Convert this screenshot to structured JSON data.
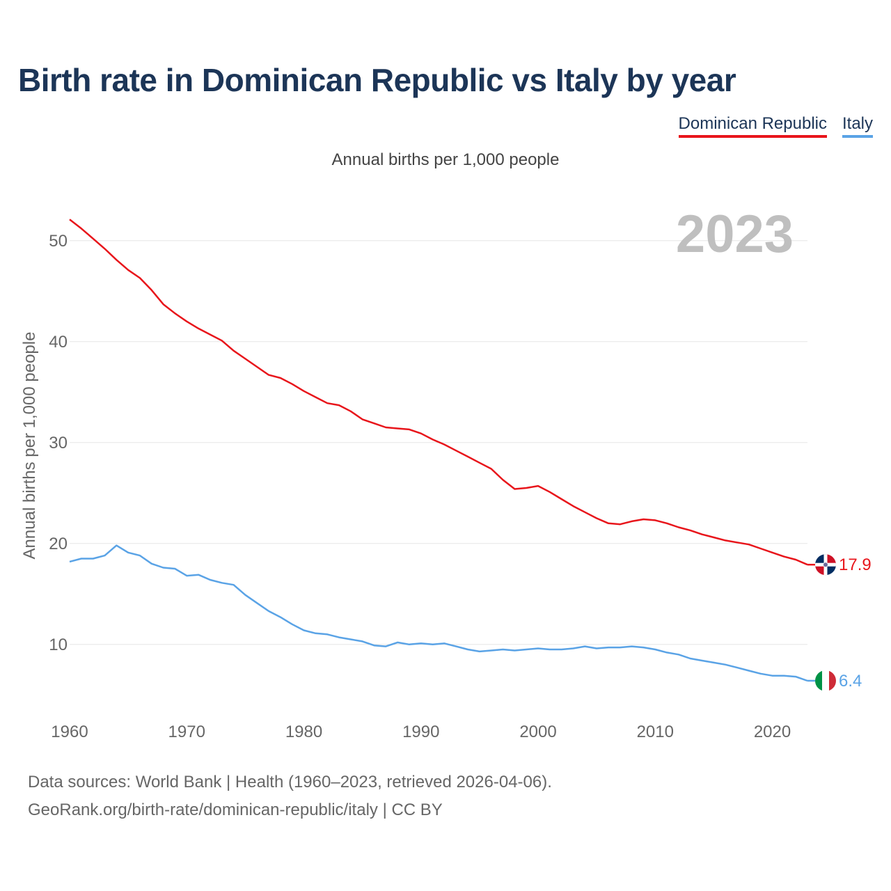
{
  "header": {
    "title": "Birth rate in Dominican Republic vs Italy by year",
    "subtitle": "Annual births per 1,000 people"
  },
  "legend": [
    {
      "label": "Dominican Republic",
      "color": "#e8151b"
    },
    {
      "label": "Italy",
      "color": "#5aa3e6"
    }
  ],
  "footer": {
    "source_line": "Data sources: World Bank | Health (1960–2023, retrieved 2026-04-06).",
    "url_line": "GeoRank.org/birth-rate/dominican-republic/italy | CC BY"
  },
  "chart_data": {
    "type": "line",
    "title": "Birth rate in Dominican Republic vs Italy by year",
    "ylabel": "Annual births per 1,000 people",
    "xlabel": "",
    "watermark_year": "2023",
    "xlim": [
      1960,
      2023
    ],
    "ylim": [
      3.5,
      53.5
    ],
    "x_ticks": [
      1960,
      1970,
      1980,
      1990,
      2000,
      2010,
      2020
    ],
    "y_ticks": [
      10,
      20,
      30,
      40,
      50
    ],
    "grid": true,
    "x": [
      1960,
      1961,
      1962,
      1963,
      1964,
      1965,
      1966,
      1967,
      1968,
      1969,
      1970,
      1971,
      1972,
      1973,
      1974,
      1975,
      1976,
      1977,
      1978,
      1979,
      1980,
      1981,
      1982,
      1983,
      1984,
      1985,
      1986,
      1987,
      1988,
      1989,
      1990,
      1991,
      1992,
      1993,
      1994,
      1995,
      1996,
      1997,
      1998,
      1999,
      2000,
      2001,
      2002,
      2003,
      2004,
      2005,
      2006,
      2007,
      2008,
      2009,
      2010,
      2011,
      2012,
      2013,
      2014,
      2015,
      2016,
      2017,
      2018,
      2019,
      2020,
      2021,
      2022,
      2023
    ],
    "series": [
      {
        "name": "Dominican Republic",
        "color": "#e8151b",
        "end_label": "17.9",
        "values": [
          52.1,
          51.2,
          50.2,
          49.2,
          48.1,
          47.1,
          46.3,
          45.1,
          43.7,
          42.8,
          42.0,
          41.3,
          40.7,
          40.1,
          39.1,
          38.3,
          37.5,
          36.7,
          36.4,
          35.8,
          35.1,
          34.5,
          33.9,
          33.7,
          33.1,
          32.3,
          31.9,
          31.5,
          31.4,
          31.3,
          30.9,
          30.3,
          29.8,
          29.2,
          28.6,
          28.0,
          27.4,
          26.3,
          25.4,
          25.5,
          25.7,
          25.1,
          24.4,
          23.7,
          23.1,
          22.5,
          22.0,
          21.9,
          22.2,
          22.4,
          22.3,
          22.0,
          21.6,
          21.3,
          20.9,
          20.6,
          20.3,
          20.1,
          19.9,
          19.5,
          19.1,
          18.7,
          18.4,
          17.9
        ]
      },
      {
        "name": "Italy",
        "color": "#5aa3e6",
        "end_label": "6.4",
        "values": [
          18.2,
          18.5,
          18.5,
          18.8,
          19.8,
          19.1,
          18.8,
          18.0,
          17.6,
          17.5,
          16.8,
          16.9,
          16.4,
          16.1,
          15.9,
          14.9,
          14.1,
          13.3,
          12.7,
          12.0,
          11.4,
          11.1,
          11.0,
          10.7,
          10.5,
          10.3,
          9.9,
          9.8,
          10.2,
          10.0,
          10.1,
          10.0,
          10.1,
          9.8,
          9.5,
          9.3,
          9.4,
          9.5,
          9.4,
          9.5,
          9.6,
          9.5,
          9.5,
          9.6,
          9.8,
          9.6,
          9.7,
          9.7,
          9.8,
          9.7,
          9.5,
          9.2,
          9.0,
          8.6,
          8.4,
          8.2,
          8.0,
          7.7,
          7.4,
          7.1,
          6.9,
          6.9,
          6.8,
          6.4
        ]
      }
    ]
  }
}
